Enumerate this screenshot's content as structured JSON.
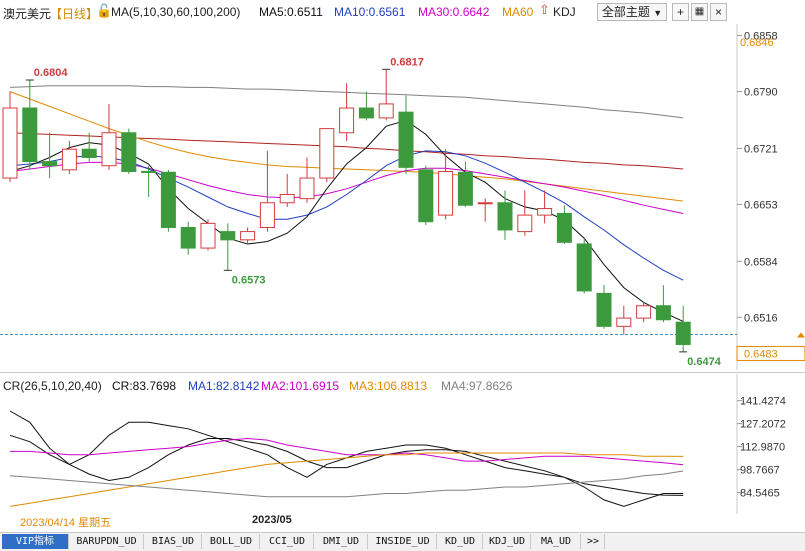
{
  "header": {
    "instrument": "澳元美元",
    "period": "【日线】",
    "ma_label": "MA(5,10,30,60,100,200)",
    "ma5": "MA5:0.6511",
    "ma10": "MA10:0.6561",
    "ma30": "MA30:0.6642",
    "ma60": "MA60",
    "kdj": "KDJ",
    "theme_button": "全部主题",
    "colors": {
      "ma5": "#111111",
      "ma10": "#1f3fbf",
      "ma30": "#cc00cc",
      "ma60": "#e08a00",
      "ma100": "#b22222",
      "ma200": "#808080",
      "up": "#d23c3c",
      "down": "#3c9a3c"
    }
  },
  "cr_header": {
    "label": "CR(26,5,10,20,40)",
    "cr": "CR:83.7698",
    "ma1": "MA1:82.8142",
    "ma2": "MA2:101.6915",
    "ma3": "MA3:106.8813",
    "ma4": "MA4:97.8626"
  },
  "footer": {
    "date_label": "2023/04/14 星期五",
    "month_label": "2023/05"
  },
  "tabs": [
    "VIP指标",
    "BARUPDN_UD",
    "BIAS_UD",
    "BOLL_UD",
    "CCI_UD",
    "DMI_UD",
    "INSIDE_UD",
    "KD_UD",
    "KDJ_UD",
    "MA_UD",
    ">>"
  ],
  "chart_data": [
    {
      "type": "candlestick",
      "title": "澳元美元 日线",
      "ylim": [
        0.6452,
        0.6872
      ],
      "y_ticks": [
        "0.6858",
        "0.6790",
        "0.6721",
        "0.6653",
        "0.6584",
        "0.6516"
      ],
      "current_price_label": "0.6483",
      "ma60_price_label": "0.6846",
      "annotations": [
        {
          "text": "0.6804",
          "index": 1,
          "value": 0.6804
        },
        {
          "text": "0.6817",
          "index": 19,
          "value": 0.6817
        },
        {
          "text": "0.6573",
          "index": 11,
          "value": 0.6573
        },
        {
          "text": "0.6474",
          "index": 34,
          "value": 0.6474
        }
      ],
      "candles": [
        {
          "open": 0.6685,
          "high": 0.679,
          "low": 0.668,
          "close": 0.677
        },
        {
          "open": 0.677,
          "high": 0.6804,
          "low": 0.6695,
          "close": 0.6705
        },
        {
          "open": 0.6705,
          "high": 0.674,
          "low": 0.6685,
          "close": 0.67
        },
        {
          "open": 0.6695,
          "high": 0.673,
          "low": 0.669,
          "close": 0.672
        },
        {
          "open": 0.672,
          "high": 0.674,
          "low": 0.6705,
          "close": 0.671
        },
        {
          "open": 0.67,
          "high": 0.6775,
          "low": 0.6695,
          "close": 0.674
        },
        {
          "open": 0.674,
          "high": 0.6745,
          "low": 0.669,
          "close": 0.6693
        },
        {
          "open": 0.6693,
          "high": 0.67,
          "low": 0.6662,
          "close": 0.6692
        },
        {
          "open": 0.6692,
          "high": 0.6695,
          "low": 0.662,
          "close": 0.6625
        },
        {
          "open": 0.6625,
          "high": 0.6632,
          "low": 0.6592,
          "close": 0.66
        },
        {
          "open": 0.66,
          "high": 0.6635,
          "low": 0.6597,
          "close": 0.663
        },
        {
          "open": 0.662,
          "high": 0.663,
          "low": 0.6573,
          "close": 0.661
        },
        {
          "open": 0.661,
          "high": 0.6625,
          "low": 0.6605,
          "close": 0.662
        },
        {
          "open": 0.6625,
          "high": 0.6718,
          "low": 0.662,
          "close": 0.6655
        },
        {
          "open": 0.6655,
          "high": 0.669,
          "low": 0.665,
          "close": 0.6665
        },
        {
          "open": 0.666,
          "high": 0.671,
          "low": 0.6655,
          "close": 0.6685
        },
        {
          "open": 0.6685,
          "high": 0.6745,
          "low": 0.668,
          "close": 0.6745
        },
        {
          "open": 0.674,
          "high": 0.68,
          "low": 0.673,
          "close": 0.677
        },
        {
          "open": 0.677,
          "high": 0.679,
          "low": 0.6755,
          "close": 0.6758
        },
        {
          "open": 0.6758,
          "high": 0.6817,
          "low": 0.6755,
          "close": 0.6775
        },
        {
          "open": 0.6765,
          "high": 0.6785,
          "low": 0.669,
          "close": 0.6698
        },
        {
          "open": 0.6695,
          "high": 0.67,
          "low": 0.6628,
          "close": 0.6632
        },
        {
          "open": 0.664,
          "high": 0.672,
          "low": 0.6635,
          "close": 0.6693
        },
        {
          "open": 0.6692,
          "high": 0.6705,
          "low": 0.665,
          "close": 0.6652
        },
        {
          "open": 0.6655,
          "high": 0.666,
          "low": 0.6632,
          "close": 0.6655
        },
        {
          "open": 0.6655,
          "high": 0.667,
          "low": 0.661,
          "close": 0.6622
        },
        {
          "open": 0.662,
          "high": 0.667,
          "low": 0.6615,
          "close": 0.664
        },
        {
          "open": 0.664,
          "high": 0.667,
          "low": 0.663,
          "close": 0.6648
        },
        {
          "open": 0.6642,
          "high": 0.6652,
          "low": 0.6605,
          "close": 0.6607
        },
        {
          "open": 0.6605,
          "high": 0.6612,
          "low": 0.6545,
          "close": 0.6548
        },
        {
          "open": 0.6545,
          "high": 0.6555,
          "low": 0.6502,
          "close": 0.6505
        },
        {
          "open": 0.6505,
          "high": 0.653,
          "low": 0.6495,
          "close": 0.6515
        },
        {
          "open": 0.6515,
          "high": 0.6535,
          "low": 0.651,
          "close": 0.653
        },
        {
          "open": 0.653,
          "high": 0.6555,
          "low": 0.651,
          "close": 0.6513
        },
        {
          "open": 0.651,
          "high": 0.653,
          "low": 0.6474,
          "close": 0.6483
        }
      ],
      "ma_series": {
        "ma5": [
          0.6693,
          0.67,
          0.671,
          0.6722,
          0.6728,
          0.6725,
          0.6715,
          0.6702,
          0.6672,
          0.6648,
          0.663,
          0.6612,
          0.6605,
          0.6608,
          0.6618,
          0.6638,
          0.6672,
          0.6702,
          0.6722,
          0.6748,
          0.6755,
          0.6738,
          0.6712,
          0.6692,
          0.668,
          0.666,
          0.665,
          0.6645,
          0.6634,
          0.6612,
          0.658,
          0.6552,
          0.6534,
          0.6522,
          0.6511
        ],
        "ma10": [
          0.67,
          0.6702,
          0.6705,
          0.671,
          0.6712,
          0.671,
          0.6705,
          0.6696,
          0.6685,
          0.6674,
          0.6662,
          0.665,
          0.6642,
          0.6635,
          0.6635,
          0.664,
          0.665,
          0.6665,
          0.6682,
          0.67,
          0.6712,
          0.6718,
          0.6717,
          0.6712,
          0.6703,
          0.6692,
          0.668,
          0.6668,
          0.6655,
          0.6638,
          0.6622,
          0.6604,
          0.6588,
          0.6573,
          0.6561
        ],
        "ma30": [
          0.6693,
          0.6696,
          0.6699,
          0.6702,
          0.6704,
          0.6704,
          0.6702,
          0.6697,
          0.669,
          0.6683,
          0.6676,
          0.667,
          0.6665,
          0.6662,
          0.6661,
          0.6662,
          0.6666,
          0.6672,
          0.668,
          0.6688,
          0.6694,
          0.6697,
          0.6697,
          0.6694,
          0.669,
          0.6686,
          0.6682,
          0.6678,
          0.6674,
          0.6669,
          0.6664,
          0.6658,
          0.6652,
          0.6647,
          0.6642
        ],
        "ma60": [
          0.679,
          0.6781,
          0.6772,
          0.6763,
          0.6754,
          0.6745,
          0.6737,
          0.6729,
          0.6722,
          0.6716,
          0.6711,
          0.6707,
          0.6704,
          0.6701,
          0.6699,
          0.6698,
          0.6697,
          0.6696,
          0.6695,
          0.6694,
          0.6693,
          0.6692,
          0.669,
          0.6688,
          0.6686,
          0.6684,
          0.6681,
          0.6678,
          0.6675,
          0.6672,
          0.6669,
          0.6666,
          0.6663,
          0.666,
          0.6657
        ],
        "ma100": [
          0.674,
          0.6739,
          0.6738,
          0.6737,
          0.6736,
          0.6735,
          0.6734,
          0.6733,
          0.6732,
          0.6731,
          0.673,
          0.6729,
          0.6728,
          0.6727,
          0.6726,
          0.6725,
          0.6724,
          0.6723,
          0.6721,
          0.672,
          0.6718,
          0.6717,
          0.6715,
          0.6714,
          0.6712,
          0.6711,
          0.6709,
          0.6708,
          0.6706,
          0.6704,
          0.6703,
          0.6701,
          0.67,
          0.6698,
          0.6696
        ],
        "ma200": [
          0.6795,
          0.6796,
          0.6797,
          0.6797,
          0.6797,
          0.6797,
          0.6797,
          0.6796,
          0.6796,
          0.6795,
          0.6795,
          0.6794,
          0.6793,
          0.6793,
          0.6792,
          0.6791,
          0.679,
          0.6789,
          0.6788,
          0.6787,
          0.6786,
          0.6785,
          0.6784,
          0.6783,
          0.6781,
          0.6779,
          0.6777,
          0.6775,
          0.6773,
          0.6771,
          0.6768,
          0.6766,
          0.6764,
          0.6761,
          0.6758
        ]
      }
    },
    {
      "type": "line",
      "title": "CR(26,5,10,20,40)",
      "ylim": [
        75,
        148
      ],
      "y_ticks": [
        "141.4274",
        "127.2072",
        "112.9870",
        "98.7667",
        "84.5465"
      ],
      "series": [
        {
          "name": "CR",
          "color": "#111111",
          "values": [
            135,
            128,
            112,
            102,
            108,
            120,
            128,
            128,
            126,
            124,
            120,
            116,
            112,
            108,
            100,
            94,
            102,
            106,
            110,
            112,
            114,
            114,
            112,
            108,
            104,
            100,
            98,
            96,
            94,
            88,
            80,
            76,
            80,
            84,
            84
          ]
        },
        {
          "name": "MA1",
          "color": "#111111",
          "values": [
            120,
            116,
            108,
            102,
            96,
            92,
            94,
            100,
            108,
            114,
            118,
            118,
            116,
            114,
            110,
            104,
            100,
            100,
            104,
            108,
            110,
            111,
            111,
            110,
            107,
            104,
            101,
            98,
            94,
            90,
            88,
            86,
            84,
            83,
            82.8
          ]
        },
        {
          "name": "MA2",
          "color": "#cc00cc",
          "values": [
            110,
            110,
            109,
            108,
            108,
            109,
            110,
            111,
            112,
            113,
            115,
            117,
            118,
            117,
            114,
            112,
            110,
            108,
            108,
            108,
            109,
            108,
            106,
            104,
            104,
            105,
            106,
            107,
            107,
            107,
            106,
            105,
            104,
            103,
            101.7
          ]
        },
        {
          "name": "MA3",
          "color": "#e08a00",
          "values": [
            76,
            78,
            80,
            82,
            84,
            86,
            88,
            90,
            92,
            94,
            96,
            98,
            100,
            102,
            103,
            104,
            105,
            106,
            107,
            108,
            108,
            109,
            109,
            109,
            109,
            109,
            109,
            109,
            109,
            108,
            108,
            108,
            107,
            107,
            106.9
          ]
        },
        {
          "name": "MA4",
          "color": "#808080",
          "values": [
            95,
            94,
            93,
            92,
            91,
            90,
            89,
            88,
            87,
            86,
            85,
            84,
            83,
            82,
            82,
            82,
            82,
            82,
            83,
            84,
            84,
            85,
            86,
            86,
            87,
            88,
            88,
            89,
            90,
            91,
            92,
            93,
            95,
            96,
            97.9
          ]
        }
      ]
    }
  ]
}
